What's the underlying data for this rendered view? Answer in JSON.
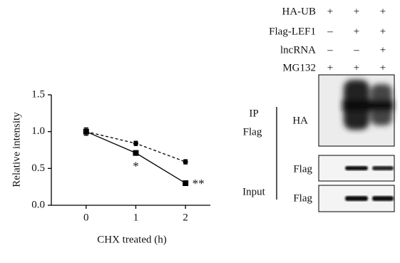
{
  "chart_data": {
    "type": "line",
    "xlabel": "CHX treated (h)",
    "ylabel": "Relative intensity",
    "x": [
      0,
      1,
      2
    ],
    "series": [
      {
        "color": "#000000",
        "dash": "solid",
        "marker": "square",
        "values": [
          1.0,
          0.71,
          0.3
        ],
        "errors": [
          0.05,
          0.03,
          0.03
        ]
      },
      {
        "color": "#000000",
        "dash": "dashed",
        "marker": "circle",
        "values": [
          1.0,
          0.84,
          0.59
        ],
        "errors": [
          0.05,
          0.03,
          0.03
        ]
      }
    ],
    "annotations": [
      "*",
      "**"
    ],
    "xlim": [
      -0.7,
      2.5
    ],
    "xticks": [
      0,
      1,
      2
    ],
    "ylim": [
      0,
      1.5
    ],
    "yticks": [
      {
        "value": 0,
        "label": "0.0"
      },
      {
        "value": 0.5,
        "label": "0.5"
      },
      {
        "value": 1,
        "label": "1.0"
      },
      {
        "value": 1.5,
        "label": "1.5"
      }
    ]
  },
  "blot": {
    "conditions": [
      {
        "label": "HA-UB",
        "signs": [
          "+",
          "+",
          "+"
        ]
      },
      {
        "label": "Flag-LEF1",
        "signs": [
          "–",
          "+",
          "+"
        ]
      },
      {
        "label": "lncRNA",
        "signs": [
          "–",
          "–",
          "+"
        ]
      },
      {
        "label": "MG132",
        "signs": [
          "+",
          "+",
          "+"
        ]
      }
    ],
    "ip_label": "IP",
    "ip_antibody": "Flag",
    "input_label": "Input",
    "panels": [
      "HA",
      "Flag",
      "Flag"
    ]
  }
}
